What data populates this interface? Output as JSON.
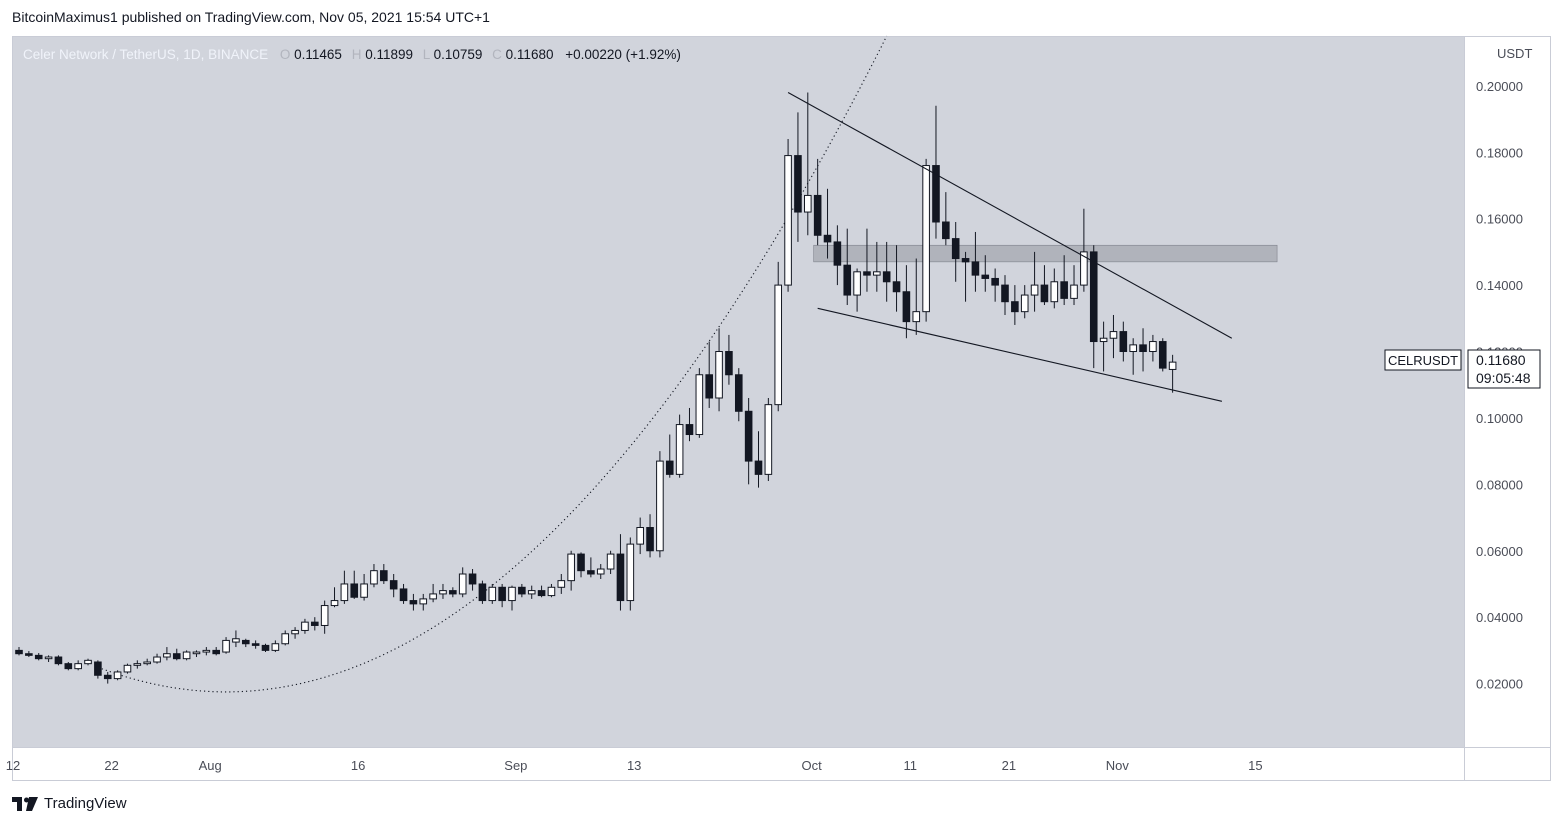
{
  "header": {
    "caption": "BitcoinMaximus1 published on TradingView.com, Nov 05, 2021 15:54 UTC+1"
  },
  "legend": {
    "title": "Celer Network / TetherUS, 1D, BINANCE",
    "o_label": "O",
    "o_value": "0.11465",
    "h_label": "H",
    "h_value": "0.11899",
    "l_label": "L",
    "l_value": "0.10759",
    "c_label": "C",
    "c_value": "0.11680",
    "change": "+0.00220 (+1.92%)"
  },
  "price_axis": {
    "currency": "USDT",
    "labels": [
      "0.20000",
      "0.18000",
      "0.16000",
      "0.14000",
      "0.12000",
      "0.10000",
      "0.08000",
      "0.06000",
      "0.04000",
      "0.02000"
    ]
  },
  "symbol_tag": {
    "name": "CELRUSDT",
    "price": "0.11680",
    "countdown": "09:05:48"
  },
  "footer": {
    "brand": "TradingView"
  },
  "colors": {
    "plot_bg": "#d1d4dc",
    "candle_up": "#ffffff",
    "candle_down": "#131722",
    "wick": "#131722",
    "trendline": "#131722",
    "zone": "#9598a1"
  },
  "chart_data": {
    "type": "candlestick",
    "interval": "1D",
    "y_range": [
      0,
      0.21
    ],
    "y_ticks": [
      0.02,
      0.04,
      0.06,
      0.08,
      0.1,
      0.12,
      0.14,
      0.16,
      0.18,
      0.2
    ],
    "x_tick_labels": [
      {
        "label": "12",
        "date": "2021-07-12"
      },
      {
        "label": "22",
        "date": "2021-07-22"
      },
      {
        "label": "Aug",
        "date": "2021-08-01"
      },
      {
        "label": "16",
        "date": "2021-08-16"
      },
      {
        "label": "Sep",
        "date": "2021-09-01"
      },
      {
        "label": "13",
        "date": "2021-09-13"
      },
      {
        "label": "Oct",
        "date": "2021-10-01"
      },
      {
        "label": "11",
        "date": "2021-10-11"
      },
      {
        "label": "21",
        "date": "2021-10-21"
      },
      {
        "label": "Nov",
        "date": "2021-11-01"
      },
      {
        "label": "15",
        "date": "2021-11-15"
      }
    ],
    "candles": [
      [
        "2021-07-12",
        0.03,
        0.031,
        0.0285,
        0.029
      ],
      [
        "2021-07-13",
        0.029,
        0.0298,
        0.028,
        0.0285
      ],
      [
        "2021-07-14",
        0.0285,
        0.0292,
        0.027,
        0.0275
      ],
      [
        "2021-07-15",
        0.0275,
        0.0285,
        0.0265,
        0.028
      ],
      [
        "2021-07-16",
        0.028,
        0.0285,
        0.0255,
        0.026
      ],
      [
        "2021-07-17",
        0.026,
        0.0265,
        0.024,
        0.0245
      ],
      [
        "2021-07-18",
        0.0245,
        0.027,
        0.024,
        0.026
      ],
      [
        "2021-07-19",
        0.026,
        0.0275,
        0.0255,
        0.027
      ],
      [
        "2021-07-20",
        0.0265,
        0.027,
        0.0215,
        0.0225
      ],
      [
        "2021-07-21",
        0.0225,
        0.0235,
        0.02,
        0.0215
      ],
      [
        "2021-07-22",
        0.0215,
        0.024,
        0.021,
        0.0235
      ],
      [
        "2021-07-23",
        0.0235,
        0.026,
        0.023,
        0.0255
      ],
      [
        "2021-07-24",
        0.0255,
        0.027,
        0.0245,
        0.026
      ],
      [
        "2021-07-25",
        0.026,
        0.0275,
        0.0255,
        0.0265
      ],
      [
        "2021-07-26",
        0.0265,
        0.029,
        0.026,
        0.028
      ],
      [
        "2021-07-27",
        0.028,
        0.031,
        0.027,
        0.029
      ],
      [
        "2021-07-28",
        0.029,
        0.0305,
        0.027,
        0.0275
      ],
      [
        "2021-07-29",
        0.0275,
        0.03,
        0.027,
        0.0295
      ],
      [
        "2021-07-30",
        0.029,
        0.03,
        0.028,
        0.0295
      ],
      [
        "2021-07-31",
        0.0295,
        0.031,
        0.0285,
        0.03
      ],
      [
        "2021-08-01",
        0.03,
        0.031,
        0.0285,
        0.029
      ],
      [
        "2021-08-02",
        0.0295,
        0.034,
        0.029,
        0.033
      ],
      [
        "2021-08-03",
        0.0325,
        0.036,
        0.031,
        0.0335
      ],
      [
        "2021-08-04",
        0.033,
        0.0335,
        0.031,
        0.032
      ],
      [
        "2021-08-05",
        0.032,
        0.033,
        0.0305,
        0.0315
      ],
      [
        "2021-08-06",
        0.0315,
        0.032,
        0.0295,
        0.03
      ],
      [
        "2021-08-07",
        0.03,
        0.033,
        0.0295,
        0.032
      ],
      [
        "2021-08-08",
        0.032,
        0.036,
        0.0315,
        0.035
      ],
      [
        "2021-08-09",
        0.035,
        0.037,
        0.0335,
        0.036
      ],
      [
        "2021-08-10",
        0.036,
        0.0395,
        0.035,
        0.0385
      ],
      [
        "2021-08-11",
        0.0385,
        0.04,
        0.036,
        0.0375
      ],
      [
        "2021-08-12",
        0.0375,
        0.045,
        0.035,
        0.0435
      ],
      [
        "2021-08-13",
        0.0435,
        0.049,
        0.043,
        0.045
      ],
      [
        "2021-08-14",
        0.045,
        0.054,
        0.044,
        0.05
      ],
      [
        "2021-08-15",
        0.05,
        0.054,
        0.0455,
        0.046
      ],
      [
        "2021-08-16",
        0.046,
        0.053,
        0.045,
        0.05
      ],
      [
        "2021-08-17",
        0.05,
        0.056,
        0.049,
        0.054
      ],
      [
        "2021-08-18",
        0.054,
        0.056,
        0.05,
        0.051
      ],
      [
        "2021-08-19",
        0.051,
        0.053,
        0.046,
        0.0485
      ],
      [
        "2021-08-20",
        0.0485,
        0.05,
        0.044,
        0.045
      ],
      [
        "2021-08-21",
        0.045,
        0.047,
        0.042,
        0.044
      ],
      [
        "2021-08-22",
        0.044,
        0.047,
        0.042,
        0.0455
      ],
      [
        "2021-08-23",
        0.0455,
        0.05,
        0.0445,
        0.047
      ],
      [
        "2021-08-24",
        0.047,
        0.05,
        0.0455,
        0.048
      ],
      [
        "2021-08-25",
        0.048,
        0.049,
        0.046,
        0.047
      ],
      [
        "2021-08-26",
        0.047,
        0.055,
        0.046,
        0.053
      ],
      [
        "2021-08-27",
        0.053,
        0.0545,
        0.048,
        0.05
      ],
      [
        "2021-08-28",
        0.05,
        0.051,
        0.044,
        0.045
      ],
      [
        "2021-08-29",
        0.045,
        0.05,
        0.044,
        0.049
      ],
      [
        "2021-08-30",
        0.049,
        0.05,
        0.043,
        0.045
      ],
      [
        "2021-08-31",
        0.045,
        0.0495,
        0.042,
        0.049
      ],
      [
        "2021-09-01",
        0.049,
        0.05,
        0.046,
        0.047
      ],
      [
        "2021-09-02",
        0.047,
        0.0495,
        0.0455,
        0.048
      ],
      [
        "2021-09-03",
        0.048,
        0.0495,
        0.046,
        0.0465
      ],
      [
        "2021-09-04",
        0.0465,
        0.05,
        0.046,
        0.049
      ],
      [
        "2021-09-05",
        0.049,
        0.053,
        0.047,
        0.051
      ],
      [
        "2021-09-06",
        0.051,
        0.06,
        0.048,
        0.059
      ],
      [
        "2021-09-07",
        0.059,
        0.0595,
        0.052,
        0.054
      ],
      [
        "2021-09-08",
        0.054,
        0.058,
        0.052,
        0.053
      ],
      [
        "2021-09-09",
        0.053,
        0.056,
        0.0515,
        0.0545
      ],
      [
        "2021-09-10",
        0.0545,
        0.06,
        0.053,
        0.059
      ],
      [
        "2021-09-11",
        0.059,
        0.065,
        0.042,
        0.045
      ],
      [
        "2021-09-12",
        0.045,
        0.064,
        0.042,
        0.062
      ],
      [
        "2021-09-13",
        0.062,
        0.07,
        0.059,
        0.067
      ],
      [
        "2021-09-14",
        0.067,
        0.071,
        0.058,
        0.06
      ],
      [
        "2021-09-15",
        0.06,
        0.09,
        0.058,
        0.087
      ],
      [
        "2021-09-16",
        0.087,
        0.095,
        0.082,
        0.083
      ],
      [
        "2021-09-17",
        0.083,
        0.101,
        0.082,
        0.098
      ],
      [
        "2021-09-18",
        0.098,
        0.103,
        0.093,
        0.095
      ],
      [
        "2021-09-19",
        0.095,
        0.115,
        0.094,
        0.113
      ],
      [
        "2021-09-20",
        0.113,
        0.123,
        0.103,
        0.106
      ],
      [
        "2021-09-21",
        0.106,
        0.127,
        0.102,
        0.12
      ],
      [
        "2021-09-22",
        0.12,
        0.125,
        0.11,
        0.113
      ],
      [
        "2021-09-23",
        0.113,
        0.115,
        0.099,
        0.102
      ],
      [
        "2021-09-24",
        0.102,
        0.106,
        0.08,
        0.087
      ],
      [
        "2021-09-25",
        0.087,
        0.096,
        0.079,
        0.083
      ],
      [
        "2021-09-26",
        0.083,
        0.106,
        0.081,
        0.104
      ],
      [
        "2021-09-27",
        0.104,
        0.147,
        0.102,
        0.14
      ],
      [
        "2021-09-28",
        0.14,
        0.184,
        0.138,
        0.179
      ],
      [
        "2021-09-29",
        0.179,
        0.192,
        0.153,
        0.162
      ],
      [
        "2021-09-30",
        0.162,
        0.198,
        0.155,
        0.167
      ],
      [
        "2021-10-01",
        0.167,
        0.178,
        0.152,
        0.155
      ],
      [
        "2021-10-02",
        0.155,
        0.169,
        0.148,
        0.153
      ],
      [
        "2021-10-03",
        0.153,
        0.158,
        0.14,
        0.146
      ],
      [
        "2021-10-04",
        0.146,
        0.157,
        0.134,
        0.137
      ],
      [
        "2021-10-05",
        0.137,
        0.145,
        0.132,
        0.144
      ],
      [
        "2021-10-06",
        0.144,
        0.157,
        0.138,
        0.143
      ],
      [
        "2021-10-07",
        0.143,
        0.153,
        0.138,
        0.144
      ],
      [
        "2021-10-08",
        0.144,
        0.153,
        0.135,
        0.141
      ],
      [
        "2021-10-09",
        0.141,
        0.152,
        0.132,
        0.138
      ],
      [
        "2021-10-10",
        0.138,
        0.146,
        0.124,
        0.129
      ],
      [
        "2021-10-11",
        0.129,
        0.148,
        0.125,
        0.132
      ],
      [
        "2021-10-12",
        0.132,
        0.178,
        0.129,
        0.176
      ],
      [
        "2021-10-13",
        0.176,
        0.194,
        0.154,
        0.159
      ],
      [
        "2021-10-14",
        0.159,
        0.168,
        0.152,
        0.154
      ],
      [
        "2021-10-15",
        0.154,
        0.159,
        0.141,
        0.148
      ],
      [
        "2021-10-16",
        0.148,
        0.15,
        0.135,
        0.147
      ],
      [
        "2021-10-17",
        0.147,
        0.156,
        0.138,
        0.143
      ],
      [
        "2021-10-18",
        0.143,
        0.149,
        0.138,
        0.142
      ],
      [
        "2021-10-19",
        0.142,
        0.145,
        0.135,
        0.14
      ],
      [
        "2021-10-20",
        0.14,
        0.143,
        0.131,
        0.135
      ],
      [
        "2021-10-21",
        0.135,
        0.14,
        0.128,
        0.132
      ],
      [
        "2021-10-22",
        0.132,
        0.14,
        0.13,
        0.137
      ],
      [
        "2021-10-23",
        0.137,
        0.15,
        0.132,
        0.14
      ],
      [
        "2021-10-24",
        0.14,
        0.146,
        0.134,
        0.135
      ],
      [
        "2021-10-25",
        0.135,
        0.145,
        0.133,
        0.141
      ],
      [
        "2021-10-26",
        0.141,
        0.149,
        0.134,
        0.136
      ],
      [
        "2021-10-27",
        0.136,
        0.146,
        0.134,
        0.14
      ],
      [
        "2021-10-28",
        0.14,
        0.163,
        0.138,
        0.15
      ],
      [
        "2021-10-29",
        0.15,
        0.152,
        0.115,
        0.123
      ],
      [
        "2021-10-30",
        0.123,
        0.129,
        0.114,
        0.124
      ],
      [
        "2021-10-31",
        0.124,
        0.131,
        0.118,
        0.126
      ],
      [
        "2021-11-01",
        0.126,
        0.129,
        0.117,
        0.12
      ],
      [
        "2021-11-02",
        0.12,
        0.124,
        0.113,
        0.122
      ],
      [
        "2021-11-03",
        0.122,
        0.127,
        0.114,
        0.12
      ],
      [
        "2021-11-04",
        0.12,
        0.125,
        0.117,
        0.123
      ],
      [
        "2021-11-05",
        0.123,
        0.124,
        0.114,
        0.115
      ],
      [
        "2021-11-06",
        0.1146,
        0.119,
        0.1076,
        0.1168
      ]
    ],
    "annotations": {
      "resistance_zone": {
        "from": "2021-10-01",
        "to": "2021-11-17",
        "low": 0.147,
        "high": 0.152
      },
      "upper_trendline": [
        [
          "2021-09-28",
          0.198
        ],
        [
          "2021-11-12",
          0.124
        ]
      ],
      "lower_trendline": [
        [
          "2021-10-01",
          0.133
        ],
        [
          "2021-11-11",
          0.105
        ]
      ],
      "parabolic_curve": {
        "start": [
          "2021-07-20",
          0.02
        ],
        "vertex": [
          "2021-08-02",
          0.0175
        ],
        "end": [
          "2021-10-08",
          0.215
        ],
        "style": "dotted"
      }
    }
  }
}
